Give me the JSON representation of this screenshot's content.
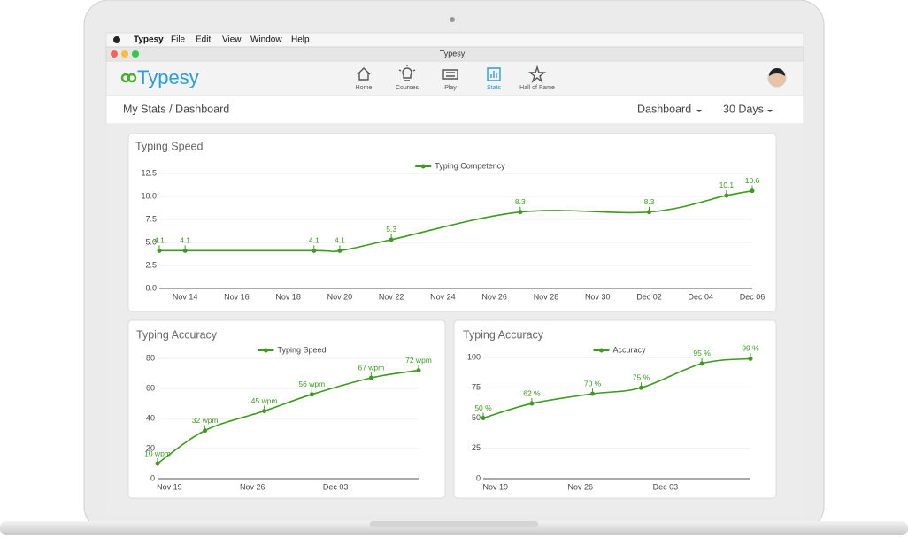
{
  "menu_bar": {
    "items": [
      "Typesy",
      "File",
      "Edit",
      "View",
      "Window",
      "Help"
    ]
  },
  "window_title": "Typesy",
  "app": {
    "logo": "Typesy",
    "nav": [
      "Home",
      "Courses",
      "Play",
      "Stats",
      "Hall of Fame"
    ],
    "active_nav": 3,
    "breadcrumb": "My Stats / Dashboard",
    "dropdowns": [
      "Dashboard",
      "30 Days"
    ]
  },
  "chart_data": [
    {
      "type": "line",
      "title": "Typing Speed",
      "x": [
        "Nov 13",
        "Nov 14",
        "Nov 19",
        "Nov 20",
        "Nov 22",
        "Nov 27",
        "Dec 02",
        "Dec 05",
        "Dec 06"
      ],
      "series": [
        {
          "name": "Typing Competency",
          "color": "#3c9a1e",
          "values": [
            4.1,
            4.1,
            4.1,
            4.1,
            5.3,
            8.3,
            8.3,
            10.1,
            10.6
          ]
        }
      ],
      "xlim": [
        "Nov 13",
        "Dec 06"
      ],
      "xticks": [
        "Nov 14",
        "Nov 16",
        "Nov 18",
        "Nov 20",
        "Nov 22",
        "Nov 24",
        "Nov 26",
        "Nov 28",
        "Nov 30",
        "Dec 02",
        "Dec 04",
        "Dec 06"
      ],
      "ylim": [
        0,
        12.5
      ],
      "yticks": [
        {
          "value": 0,
          "label": "0.0"
        },
        2.5,
        {
          "value": 5,
          "label": "5.0"
        },
        7.5,
        {
          "value": 10,
          "label": "10.0"
        },
        12.5
      ],
      "grid": true
    },
    {
      "type": "line",
      "title": "Typing Accuracy",
      "x": [
        "Nov 18",
        "Nov 22",
        "Nov 27",
        "Dec 01",
        "Dec 06",
        "Dec 10"
      ],
      "series": [
        {
          "name": "Typing Speed",
          "color": "#3c9a1e",
          "values": [
            10,
            32,
            45,
            56,
            67,
            72
          ],
          "value_labels": [
            "10 wpm",
            "32 wpm",
            "45 wpm",
            "56 wpm",
            "67 wpm",
            "72 wpm"
          ]
        }
      ],
      "xlim": [
        "Nov 18",
        "Dec 10"
      ],
      "xticks": [
        "Nov 19",
        "Nov 26",
        "Dec 03"
      ],
      "ylim": [
        0,
        80
      ],
      "yticks": [
        0,
        20,
        40,
        60,
        80
      ],
      "grid": true
    },
    {
      "type": "line",
      "title": "Typing Accuracy",
      "x": [
        "Nov 18",
        "Nov 22",
        "Nov 27",
        "Dec 01",
        "Dec 06",
        "Dec 10"
      ],
      "series": [
        {
          "name": "Accuracy",
          "color": "#3c9a1e",
          "values": [
            50,
            62,
            70,
            75,
            95,
            99
          ],
          "value_labels": [
            "50 %",
            "62 %",
            "70 %",
            "75 %",
            "95 %",
            "99 %"
          ]
        }
      ],
      "xlim": [
        "Nov 18",
        "Dec 10"
      ],
      "xticks": [
        "Nov 19",
        "Nov 26",
        "Dec 03"
      ],
      "ylim": [
        0,
        100
      ],
      "yticks": [
        0,
        25,
        50,
        75,
        100
      ],
      "grid": true
    }
  ]
}
